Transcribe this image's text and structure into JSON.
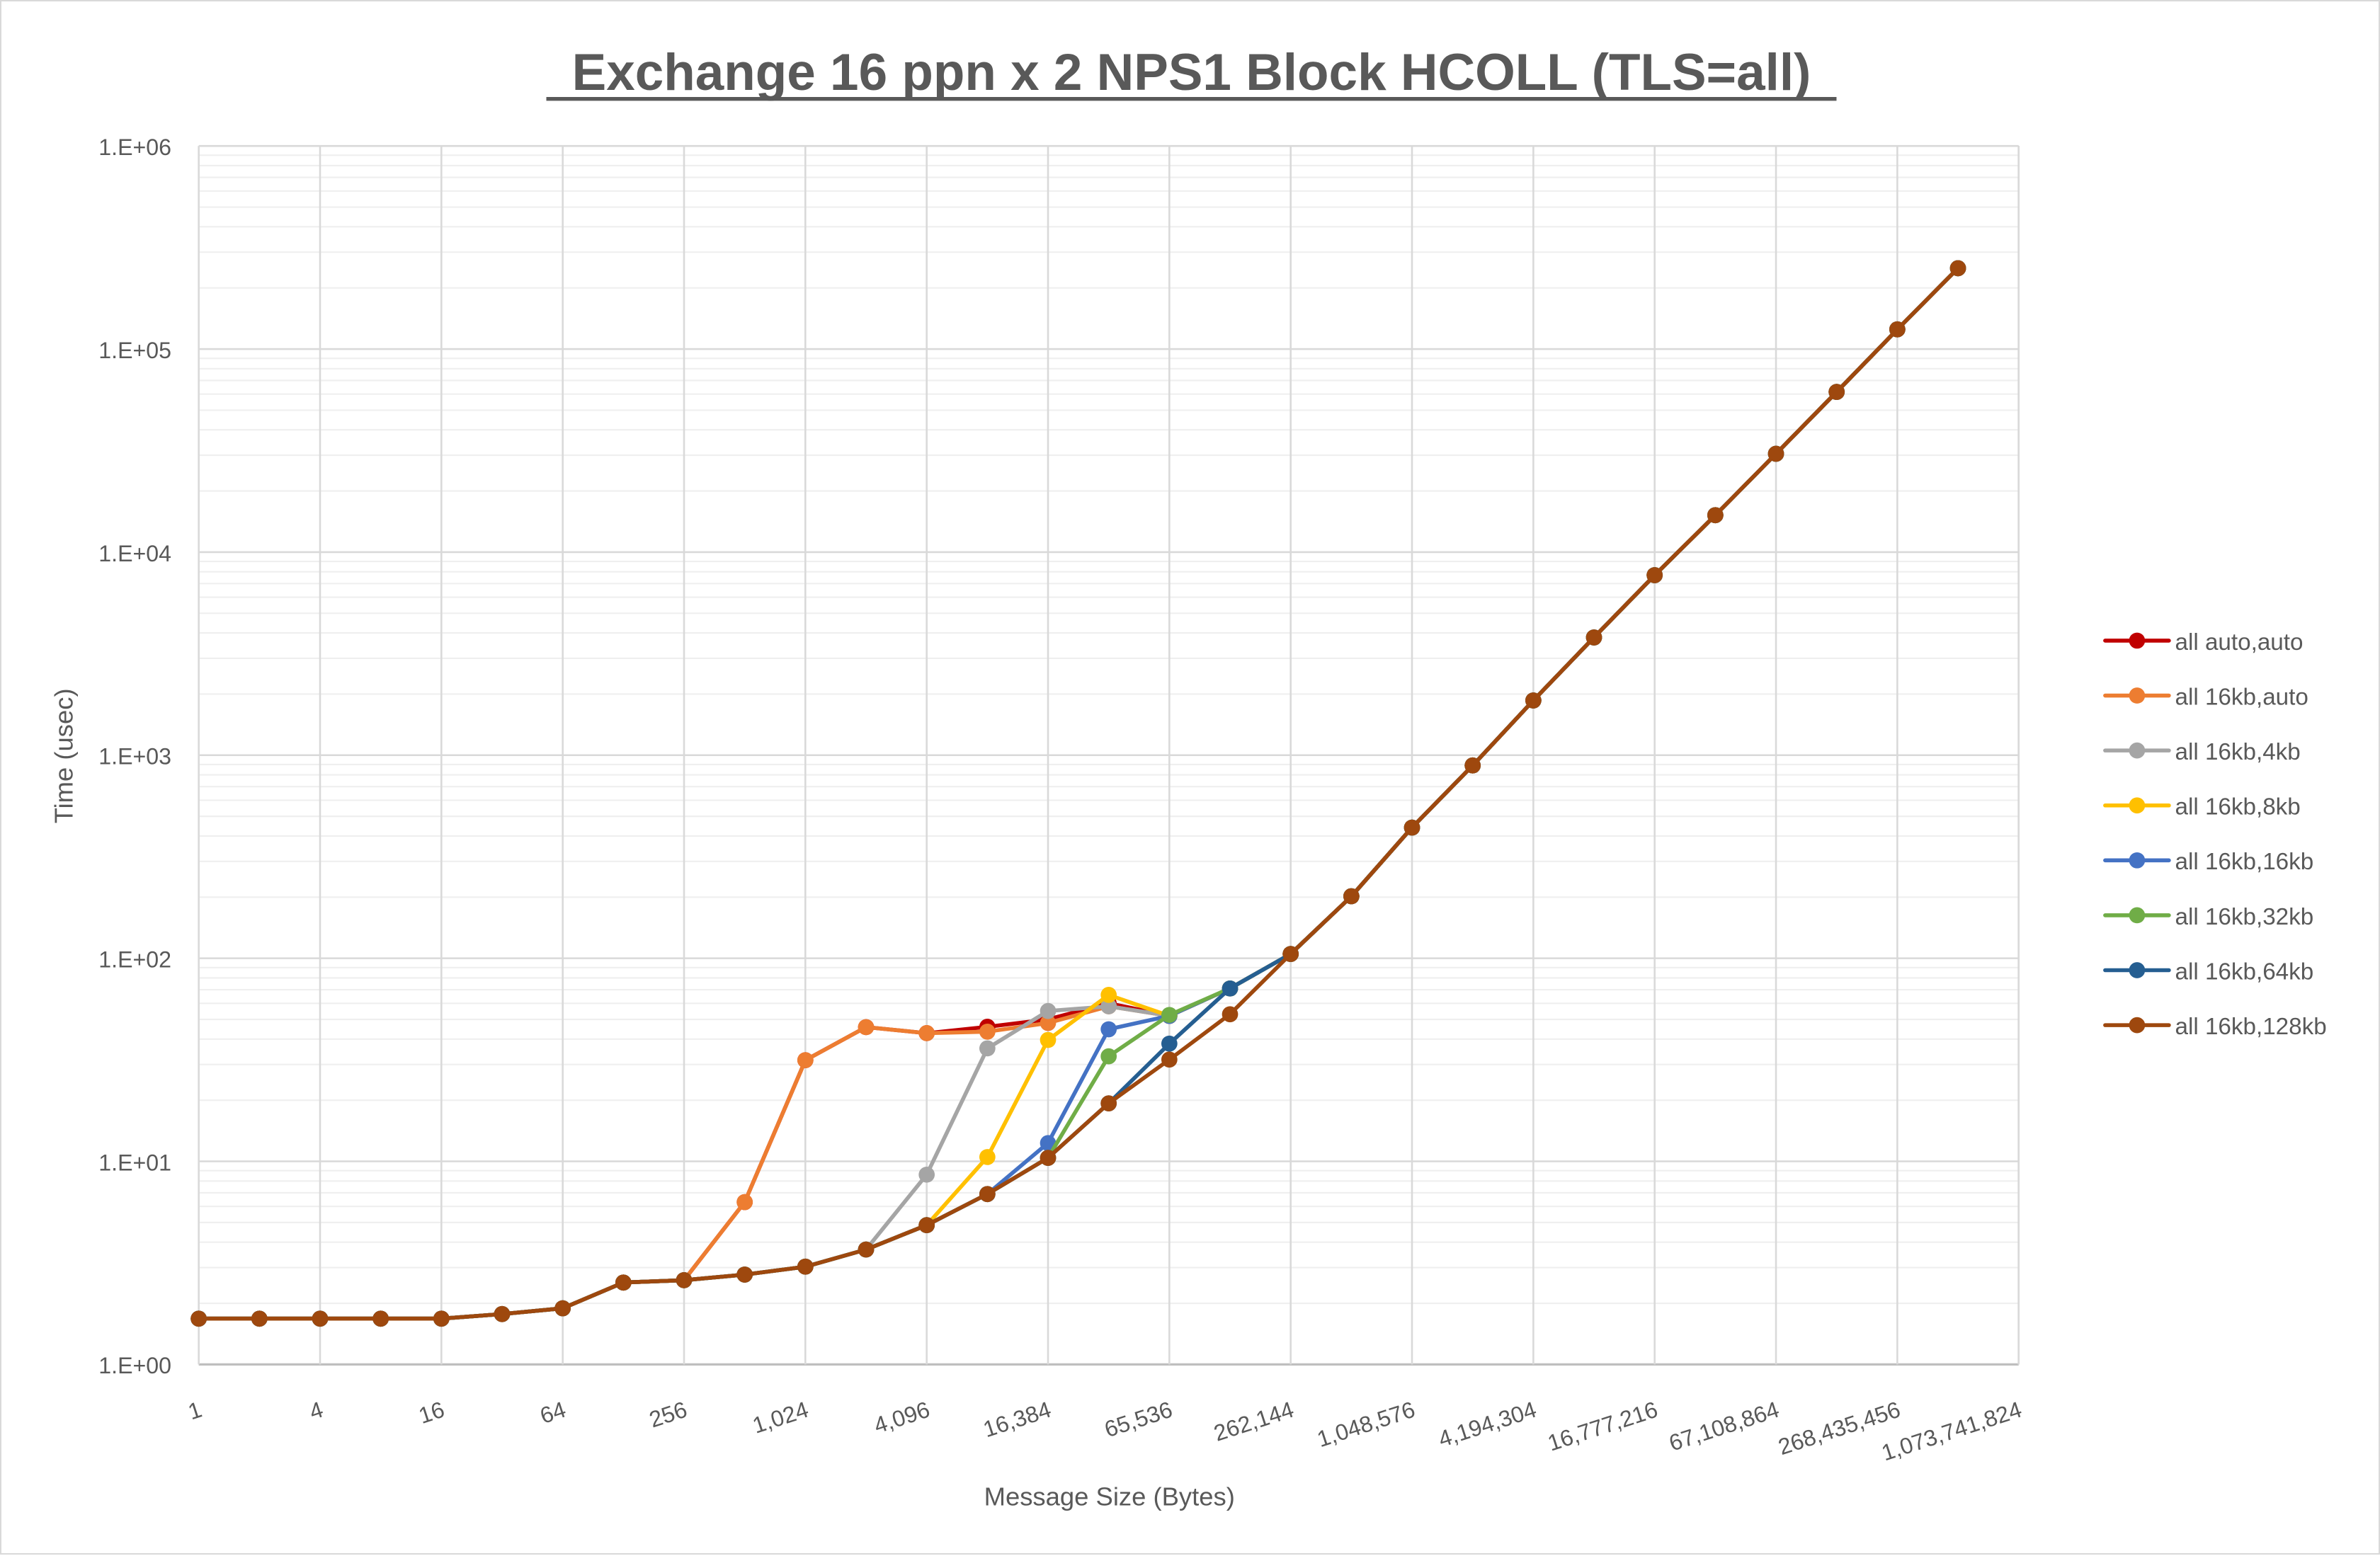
{
  "chart_data": {
    "type": "line",
    "title": "Exchange 16 ppn x 2 NPS1 Block HCOLL (TLS=all)",
    "xlabel": "Message Size (Bytes)",
    "ylabel": "Time (usec)",
    "x_scale": "log2",
    "y_scale": "log10",
    "xlim": [
      1,
      1073741824
    ],
    "ylim": [
      1,
      1000000
    ],
    "x_tick_labels": [
      "1",
      "4",
      "16",
      "64",
      "256",
      "1,024",
      "4,096",
      "16,384",
      "65,536",
      "262,144",
      "1,048,576",
      "4,194,304",
      "16,777,216",
      "67,108,864",
      "268,435,456",
      "1,073,741,824"
    ],
    "y_tick_labels": [
      "1.E+00",
      "1.E+01",
      "1.E+02",
      "1.E+03",
      "1.E+04",
      "1.E+05",
      "1.E+06"
    ],
    "grid": true,
    "legend_position": "right",
    "x": [
      1,
      2,
      4,
      8,
      16,
      32,
      64,
      128,
      256,
      512,
      1024,
      2048,
      4096,
      8192,
      16384,
      32768,
      65536,
      131072,
      262144,
      524288,
      1048576,
      2097152,
      4194304,
      8388608,
      16777216,
      33554432,
      67108864,
      134217728,
      268435456,
      536870912
    ],
    "series": [
      {
        "name": "all auto,auto",
        "color": "#C00000",
        "values": [
          1.68,
          1.68,
          1.68,
          1.68,
          1.68,
          1.77,
          1.89,
          2.53,
          2.6,
          6.3,
          31.5,
          45.8,
          42.8,
          46,
          50,
          60,
          52,
          71,
          105,
          202,
          440,
          890,
          1860,
          3800,
          7700,
          15200,
          30500,
          61500,
          125000,
          250000
        ]
      },
      {
        "name": "all 16kb,auto",
        "color": "#ED7D31",
        "values": [
          1.68,
          1.68,
          1.68,
          1.68,
          1.68,
          1.77,
          1.89,
          2.53,
          2.6,
          6.3,
          31.5,
          45.8,
          42.8,
          43.5,
          48,
          58,
          52,
          71,
          105,
          202,
          440,
          890,
          1860,
          3800,
          7700,
          15200,
          30500,
          61500,
          125000,
          250000
        ]
      },
      {
        "name": "all 16kb,4kb",
        "color": "#A5A5A5",
        "values": [
          1.68,
          1.68,
          1.68,
          1.68,
          1.68,
          1.77,
          1.89,
          2.53,
          2.6,
          2.77,
          3.03,
          3.68,
          8.6,
          36,
          55,
          58,
          52,
          71,
          105,
          202,
          440,
          890,
          1860,
          3800,
          7700,
          15200,
          30500,
          61500,
          125000,
          250000
        ]
      },
      {
        "name": "all 16kb,8kb",
        "color": "#FFC000",
        "values": [
          1.68,
          1.68,
          1.68,
          1.68,
          1.68,
          1.77,
          1.89,
          2.53,
          2.6,
          2.77,
          3.03,
          3.68,
          4.85,
          10.5,
          39.6,
          66,
          52,
          71,
          105,
          202,
          440,
          890,
          1860,
          3800,
          7700,
          15200,
          30500,
          61500,
          125000,
          250000
        ]
      },
      {
        "name": "all 16kb,16kb",
        "color": "#4472C4",
        "values": [
          1.68,
          1.68,
          1.68,
          1.68,
          1.68,
          1.77,
          1.89,
          2.53,
          2.6,
          2.77,
          3.03,
          3.68,
          4.85,
          6.9,
          12.3,
          44.7,
          52,
          71,
          105,
          202,
          440,
          890,
          1860,
          3800,
          7700,
          15200,
          30500,
          61500,
          125000,
          250000
        ]
      },
      {
        "name": "all 16kb,32kb",
        "color": "#70AD47",
        "values": [
          1.68,
          1.68,
          1.68,
          1.68,
          1.68,
          1.77,
          1.89,
          2.53,
          2.6,
          2.77,
          3.03,
          3.68,
          4.85,
          6.9,
          10.4,
          32.9,
          52.6,
          71,
          105,
          202,
          440,
          890,
          1860,
          3800,
          7700,
          15200,
          30500,
          61500,
          125000,
          250000
        ]
      },
      {
        "name": "all 16kb,64kb",
        "color": "#255E91",
        "values": [
          1.68,
          1.68,
          1.68,
          1.68,
          1.68,
          1.77,
          1.89,
          2.53,
          2.6,
          2.77,
          3.03,
          3.68,
          4.85,
          6.9,
          10.4,
          19.3,
          38,
          71,
          105,
          202,
          440,
          890,
          1860,
          3800,
          7700,
          15200,
          30500,
          61500,
          125000,
          250000
        ]
      },
      {
        "name": "all 16kb,128kb",
        "color": "#9E480E",
        "values": [
          1.68,
          1.68,
          1.68,
          1.68,
          1.68,
          1.77,
          1.89,
          2.53,
          2.6,
          2.77,
          3.03,
          3.68,
          4.85,
          6.9,
          10.4,
          19.3,
          31.7,
          53,
          105,
          202,
          440,
          890,
          1860,
          3800,
          7700,
          15200,
          30500,
          61500,
          125000,
          250000
        ]
      }
    ]
  }
}
